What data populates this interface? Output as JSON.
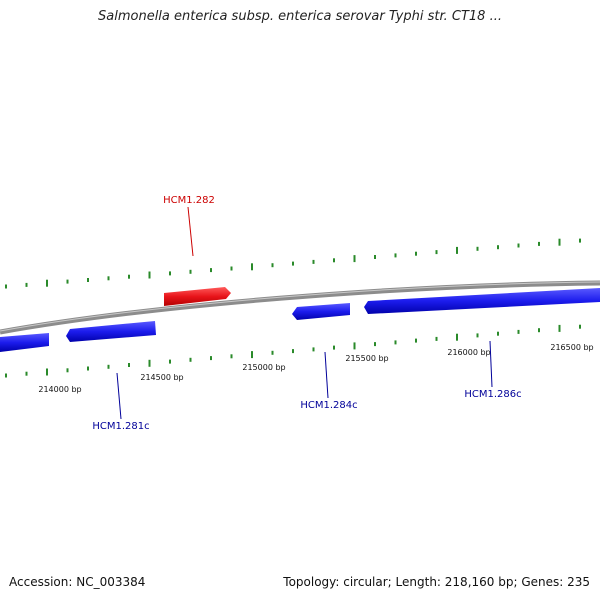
{
  "title": "Salmonella enterica subsp. enterica serovar Typhi str. CT18 ...",
  "footer": {
    "accession": "Accession: NC_003384",
    "stats": "Topology: circular; Length: 218,160 bp; Genes: 235"
  },
  "colors": {
    "forward_gene": "#e8141a",
    "reverse_gene": "#1c1ced",
    "backbone": "#8c8c8c",
    "ticks": "#2a8a2a",
    "forward_label": "#cc0000",
    "reverse_label": "#000099"
  },
  "ruler": [
    "214000 bp",
    "214500 bp",
    "215000 bp",
    "215500 bp",
    "216000 bp",
    "216500 bp"
  ],
  "genes": [
    {
      "label": "HCM1.282",
      "strand": "forward"
    },
    {
      "label": "HCM1.281c",
      "strand": "reverse"
    },
    {
      "label": "HCM1.284c",
      "strand": "reverse"
    },
    {
      "label": "HCM1.286c",
      "strand": "reverse"
    }
  ]
}
